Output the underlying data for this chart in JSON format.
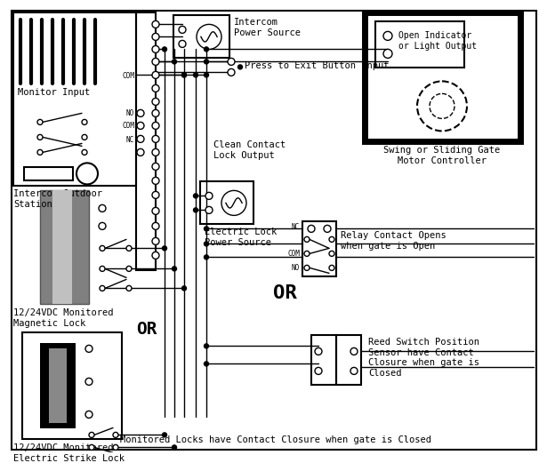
{
  "bg": "#ffffff",
  "labels": {
    "monitor_input": "Monitor Input",
    "intercom_outdoor": "Intercom Outdoor\nStation",
    "intercom_power": "Intercom\nPower Source",
    "press_exit": "Press to Exit Button Input",
    "clean_contact": "Clean Contact\nLock Output",
    "electric_lock_power": "Electric Lock\nPower Source",
    "swing_gate": "Swing or Sliding Gate\nMotor Controller",
    "open_indicator": "Open Indicator\nor Light Output",
    "relay_contact": "Relay Contact Opens\nwhen gate is Open",
    "reed_switch": "Reed Switch Position\nSensor have Contact\nClosure when gate is\nClosed",
    "mag_lock": "12/24VDC Monitored\nMagnetic Lock",
    "strike_lock": "12/24VDC Monitored\nElectric Strike Lock",
    "or_mid": "OR",
    "or_bot": "OR",
    "bottom_note": "Monitored Locks have Contact Closure when gate is Closed",
    "com_a": "COM",
    "no_a": "NO",
    "com_b": "COM",
    "nc_a": "NC",
    "nc_b": "NC",
    "com_c": "COM",
    "no_b": "NO"
  }
}
